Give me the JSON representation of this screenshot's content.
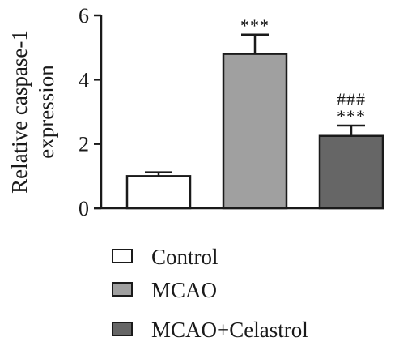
{
  "chart_data": {
    "type": "bar",
    "categories": [
      "Control",
      "MCAO",
      "MCAO+Celastrol"
    ],
    "values": [
      1.0,
      4.8,
      2.25
    ],
    "errors": [
      0.12,
      0.6,
      0.32
    ],
    "significance": [
      [],
      [
        "***"
      ],
      [
        "###",
        "***"
      ]
    ],
    "colors": [
      "#ffffff",
      "#a0a0a0",
      "#666666"
    ],
    "ylabel_lines": [
      "Relative caspase-1",
      "expression"
    ],
    "ylim": [
      0,
      6
    ],
    "yticks": [
      0,
      2,
      4,
      6
    ],
    "yticks_labels": [
      "0",
      "2",
      "4",
      "6"
    ],
    "grid": false,
    "legend_position": "bottom",
    "legend": [
      "Control",
      "MCAO",
      "MCAO+Celastrol"
    ]
  }
}
